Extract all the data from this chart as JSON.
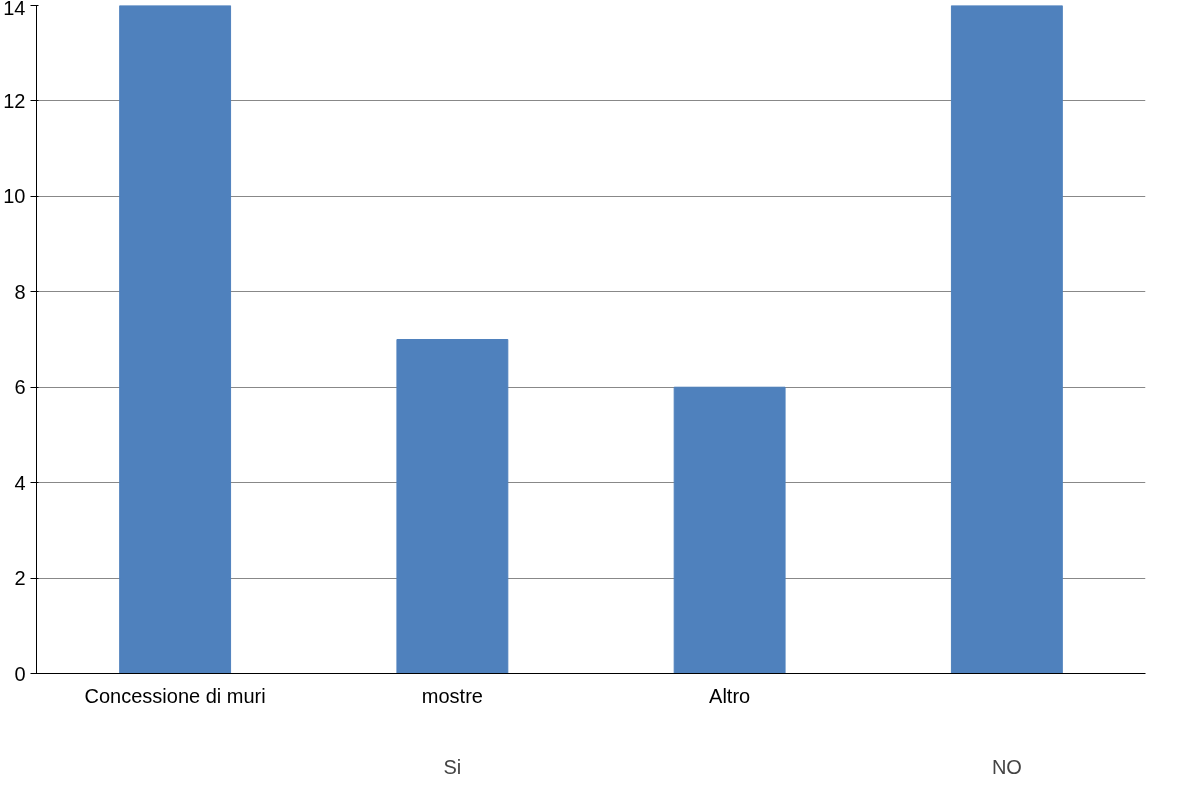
{
  "chart_data": {
    "type": "bar",
    "categories": [
      "Concessione di muri",
      "mostre",
      "Altro",
      null
    ],
    "values": [
      14,
      7,
      6,
      14
    ],
    "color": "#4f81bd",
    "ylim": [
      0,
      14
    ],
    "yticks": [
      0,
      2,
      4,
      6,
      8,
      10,
      12,
      14
    ],
    "grid": "y",
    "annotations": [
      "Si",
      "NO"
    ]
  }
}
